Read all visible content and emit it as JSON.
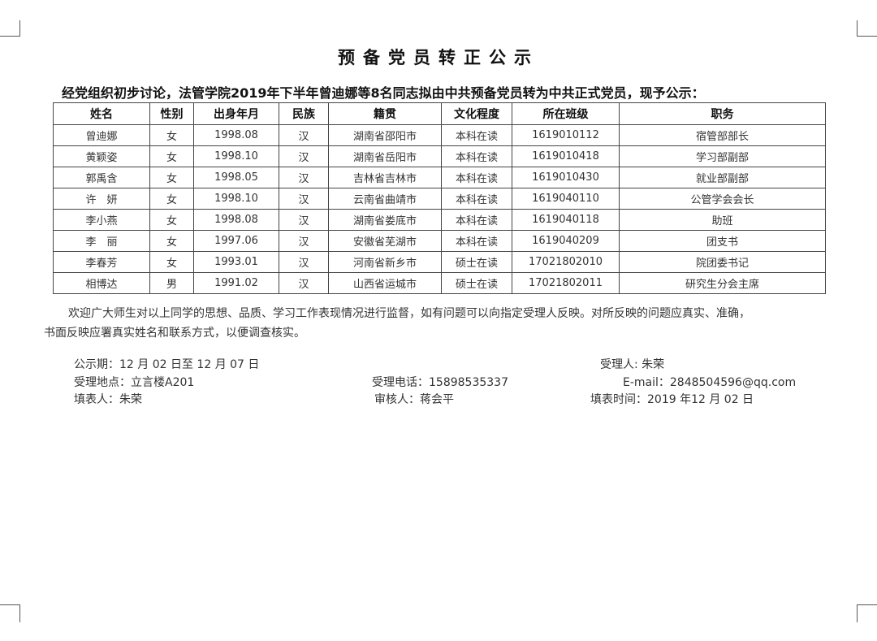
{
  "title": "预备党员转正公示",
  "intro": "经党组织初步讨论，法管学院2019年下半年曾迪娜等8名同志拟由中共预备党员转为中共正式党员，现予公示：",
  "table": {
    "headers": [
      "姓名",
      "性别",
      "出身年月",
      "民族",
      "籍贯",
      "文化程度",
      "所在班级",
      "职务"
    ],
    "rows": [
      [
        "曾迪娜",
        "女",
        "1998.08",
        "汉",
        "湖南省邵阳市",
        "本科在读",
        "1619010112",
        "宿管部部长"
      ],
      [
        "黄颖姿",
        "女",
        "1998.10",
        "汉",
        "湖南省岳阳市",
        "本科在读",
        "1619010418",
        "学习部副部"
      ],
      [
        "郭禹含",
        "女",
        "1998.05",
        "汉",
        "吉林省吉林市",
        "本科在读",
        "1619010430",
        "就业部副部"
      ],
      [
        "许　妍",
        "女",
        "1998.10",
        "汉",
        "云南省曲靖市",
        "本科在读",
        "1619040110",
        "公管学会会长"
      ],
      [
        "李小燕",
        "女",
        "1998.08",
        "汉",
        "湖南省娄底市",
        "本科在读",
        "1619040118",
        "助班"
      ],
      [
        "李　丽",
        "女",
        "1997.06",
        "汉",
        "安徽省芜湖市",
        "本科在读",
        "1619040209",
        "团支书"
      ],
      [
        "李春芳",
        "女",
        "1993.01",
        "汉",
        "河南省新乡市",
        "硕士在读",
        "17021802010",
        "院团委书记"
      ],
      [
        "相博达",
        "男",
        "1991.02",
        "汉",
        "山西省运城市",
        "硕士在读",
        "17021802011",
        "研究生分会主席"
      ]
    ]
  },
  "paragraph": [
    "欢迎广大师生对以上同学的思想、品质、学习工作表现情况进行监督，如有问题可以向指定受理人反映。对所反映的问题应真实、准确，",
    "书面反映应署真实姓名和联系方式，以便调查核实。"
  ],
  "footer": {
    "period": "公示期：12 月 02 日至 12 月 07 日",
    "handler": "受理人: 朱荣",
    "location": "受理地点：立言楼A201",
    "phone": "受理电话：15898535337",
    "email": "E-mail：2848504596@qq.com",
    "filler": "填表人：朱荣",
    "reviewer": "审核人：蒋会平",
    "date": "填表时间：2019 年12 月 02 日"
  }
}
